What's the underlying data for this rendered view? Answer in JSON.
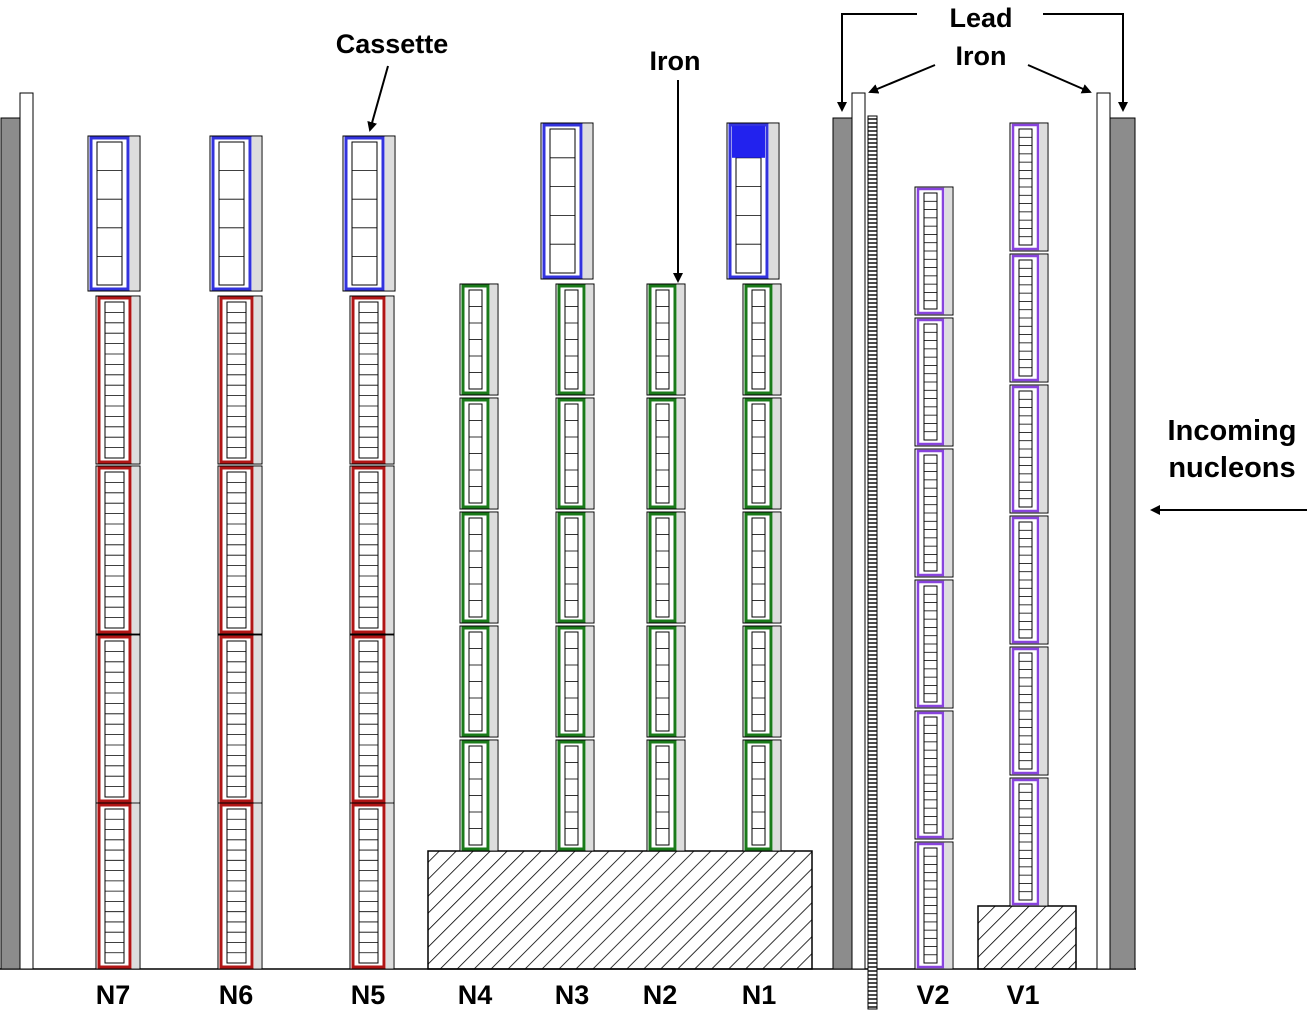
{
  "annotations": {
    "cassette": "Cassette",
    "iron_top": "Iron",
    "lead": "Lead",
    "iron_right": "Iron",
    "incoming_line1": "Incoming",
    "incoming_line2": "nucleons"
  },
  "columns": [
    {
      "label": "N7",
      "calorimeter": "hadronic"
    },
    {
      "label": "N6",
      "calorimeter": "hadronic"
    },
    {
      "label": "N5",
      "calorimeter": "hadronic"
    },
    {
      "label": "N4",
      "calorimeter": "neutron"
    },
    {
      "label": "N3",
      "calorimeter": "neutron"
    },
    {
      "label": "N2",
      "calorimeter": "neutron"
    },
    {
      "label": "N1",
      "calorimeter": "neutron"
    },
    {
      "label": "V2",
      "calorimeter": "veto"
    },
    {
      "label": "V1",
      "calorimeter": "veto"
    }
  ],
  "colors": {
    "lead": "#8c8c8c",
    "cassette_blue": "#3333dd",
    "cassette_blue_fill": "#2222ee",
    "module_red": "#b01515",
    "module_green": "#1a7a1a",
    "module_purple": "#8844dd",
    "iron_backing": "#dddddd"
  }
}
